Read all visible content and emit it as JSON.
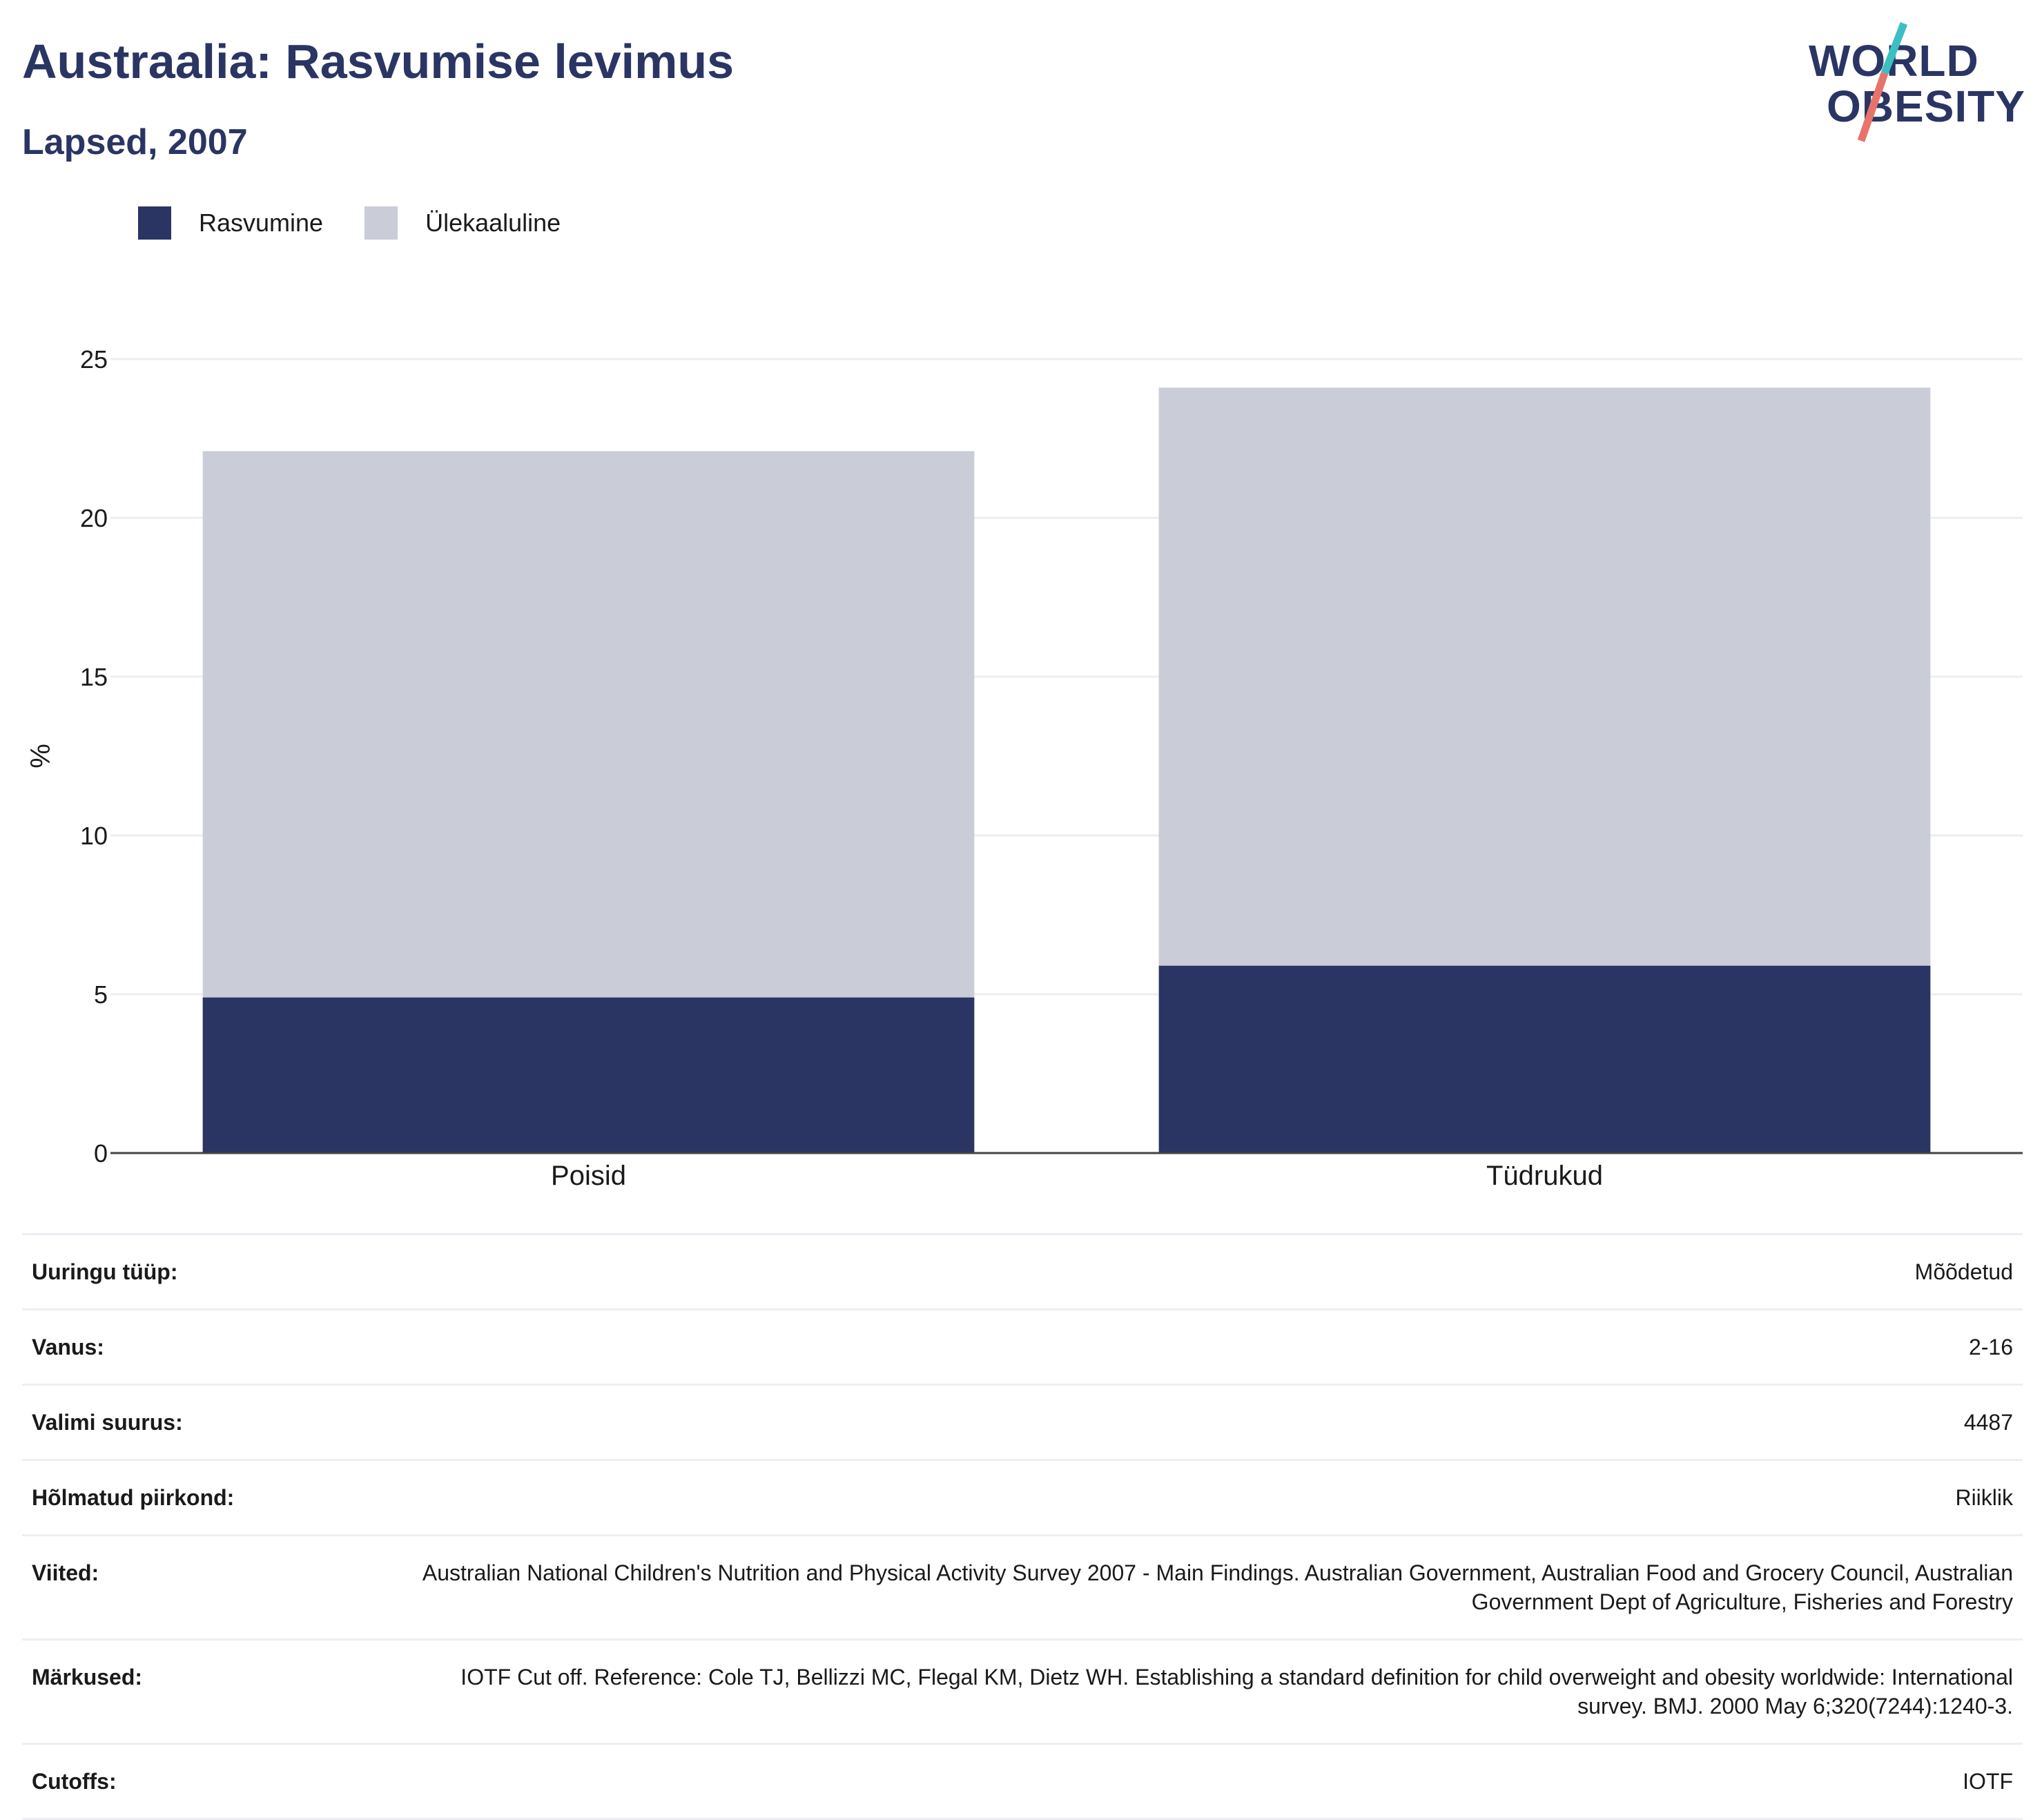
{
  "header": {
    "title": "Austraalia: Rasvumise levimus",
    "subtitle": "Lapsed, 2007"
  },
  "logo": {
    "line1": "WORLD",
    "line2": "OBESITY",
    "slash_colors": [
      "#3bbfc3",
      "#e8736b"
    ]
  },
  "colors": {
    "obesity": "#2a3563",
    "overweight": "#caccd8",
    "title": "#2a3563",
    "grid": "#eceef3",
    "axis": "#444444"
  },
  "chart_data": {
    "type": "bar",
    "stacked": true,
    "categories": [
      "Poisid",
      "Tüdrukud"
    ],
    "series": [
      {
        "name": "Rasvumine",
        "values": [
          4.9,
          5.9
        ],
        "color": "#2a3563"
      },
      {
        "name": "Ülekaaluline",
        "values": [
          17.2,
          18.2
        ],
        "color": "#caccd8"
      }
    ],
    "ylabel": "%",
    "ylim": [
      0,
      25
    ],
    "yticks": [
      0,
      5,
      10,
      15,
      20,
      25
    ],
    "grid": true,
    "legend_position": "top-left"
  },
  "info": [
    {
      "label": "Uuringu tüüp:",
      "value": "Mõõdetud"
    },
    {
      "label": "Vanus:",
      "value": "2-16"
    },
    {
      "label": "Valimi suurus:",
      "value": "4487"
    },
    {
      "label": "Hõlmatud piirkond:",
      "value": "Riiklik"
    },
    {
      "label": "Viited:",
      "value": "Australian National Children's Nutrition and Physical Activity Survey 2007 - Main Findings. Australian Government, Australian Food and Grocery Council, Australian Government Dept of Agriculture, Fisheries and Forestry"
    },
    {
      "label": "Märkused:",
      "value": "IOTF Cut off. Reference: Cole TJ, Bellizzi MC, Flegal KM, Dietz WH. Establishing a standard definition for child overweight and obesity worldwide: International survey. BMJ. 2000 May 6;320(7244):1240-3."
    },
    {
      "label": "Cutoffs:",
      "value": "IOTF"
    }
  ]
}
